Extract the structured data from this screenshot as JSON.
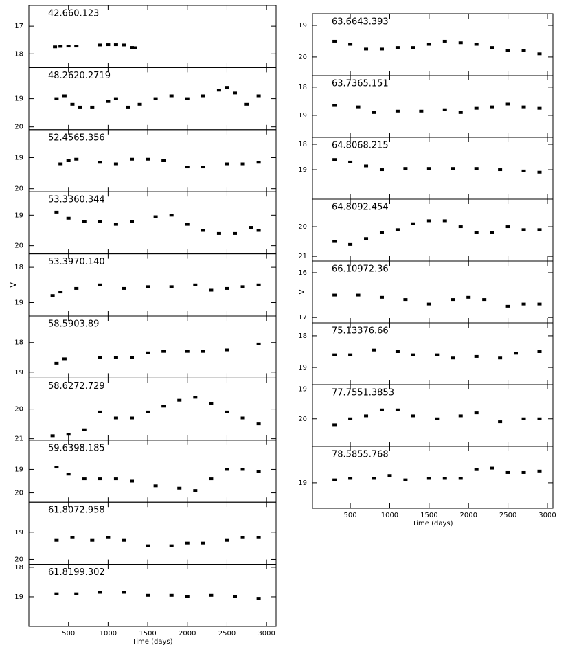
{
  "chart_data": [
    {
      "type": "scatter",
      "title": "42.660.123",
      "ylim": [
        18.5,
        16.25
      ],
      "yticks": [
        17,
        18
      ],
      "x": [
        330,
        400,
        500,
        600,
        900,
        1000,
        1100,
        1200,
        1300,
        1340
      ],
      "values": [
        17.75,
        17.73,
        17.72,
        17.72,
        17.68,
        17.67,
        17.67,
        17.68,
        17.77,
        17.78
      ]
    },
    {
      "type": "scatter",
      "title": "48.2620.2719",
      "ylim": [
        20.1,
        17.9
      ],
      "yticks": [
        19,
        20
      ],
      "x": [
        350,
        450,
        550,
        650,
        800,
        1000,
        1100,
        1250,
        1400,
        1600,
        1800,
        2000,
        2200,
        2400,
        2500,
        2600,
        2750,
        2900
      ],
      "values": [
        19.0,
        18.9,
        19.2,
        19.3,
        19.3,
        19.1,
        19.0,
        19.3,
        19.2,
        19.0,
        18.9,
        19.0,
        18.9,
        18.7,
        18.6,
        18.8,
        19.2,
        18.9
      ]
    },
    {
      "type": "scatter",
      "title": "52.4565.356",
      "ylim": [
        20.1,
        18.1
      ],
      "yticks": [
        19,
        20
      ],
      "x": [
        400,
        500,
        600,
        900,
        1100,
        1300,
        1500,
        1700,
        2000,
        2200,
        2500,
        2700,
        2900
      ],
      "values": [
        19.2,
        19.1,
        19.05,
        19.15,
        19.2,
        19.05,
        19.05,
        19.1,
        19.3,
        19.3,
        19.2,
        19.2,
        19.15
      ]
    },
    {
      "type": "scatter",
      "title": "53.3360.344",
      "ylim": [
        20.27,
        18.23
      ],
      "yticks": [
        19,
        20
      ],
      "x": [
        350,
        500,
        700,
        900,
        1100,
        1300,
        1600,
        1800,
        2000,
        2200,
        2400,
        2600,
        2800,
        2900
      ],
      "values": [
        18.9,
        19.1,
        19.2,
        19.2,
        19.3,
        19.2,
        19.05,
        19.0,
        19.3,
        19.5,
        19.6,
        19.6,
        19.4,
        19.5
      ]
    },
    {
      "type": "scatter",
      "title": "53.3970.140",
      "ylabel": "V",
      "ylim": [
        19.38,
        17.62
      ],
      "yticks": [
        18,
        19
      ],
      "x": [
        300,
        400,
        600,
        900,
        1200,
        1500,
        1800,
        2100,
        2300,
        2500,
        2700,
        2900
      ],
      "values": [
        18.8,
        18.7,
        18.6,
        18.5,
        18.6,
        18.55,
        18.55,
        18.5,
        18.65,
        18.6,
        18.55,
        18.5
      ]
    },
    {
      "type": "scatter",
      "title": "58.5903.89",
      "ylim": [
        19.2,
        17.1
      ],
      "yticks": [
        18,
        19
      ],
      "x": [
        350,
        450,
        900,
        1100,
        1300,
        1500,
        1700,
        2000,
        2200,
        2500,
        2900
      ],
      "values": [
        18.7,
        18.55,
        18.5,
        18.5,
        18.5,
        18.35,
        18.3,
        18.3,
        18.3,
        18.25,
        18.05
      ]
    },
    {
      "type": "scatter",
      "title": "58.6272.729",
      "ylim": [
        21.05,
        18.95
      ],
      "yticks": [
        20,
        21
      ],
      "x": [
        300,
        500,
        700,
        900,
        1100,
        1300,
        1500,
        1700,
        1900,
        2100,
        2300,
        2500,
        2700,
        2900
      ],
      "values": [
        20.9,
        20.85,
        20.7,
        20.1,
        20.3,
        20.3,
        20.1,
        19.9,
        19.7,
        19.6,
        19.8,
        20.1,
        20.3,
        20.5
      ]
    },
    {
      "type": "scatter",
      "title": "59.6398.185",
      "ylim": [
        20.4,
        17.75
      ],
      "yticks": [
        19,
        20
      ],
      "x": [
        350,
        500,
        700,
        900,
        1100,
        1300,
        1600,
        1900,
        2100,
        2300,
        2500,
        2700,
        2900
      ],
      "values": [
        18.9,
        19.2,
        19.4,
        19.4,
        19.4,
        19.5,
        19.7,
        19.8,
        19.9,
        19.4,
        19.0,
        19.0,
        19.1
      ]
    },
    {
      "type": "scatter",
      "title": "61.8072.958",
      "ylim": [
        20.18,
        17.9
      ],
      "yticks": [
        19,
        20
      ],
      "x": [
        350,
        550,
        800,
        1000,
        1200,
        1500,
        1800,
        2000,
        2200,
        2500,
        2700,
        2900
      ],
      "values": [
        19.3,
        19.2,
        19.3,
        19.2,
        19.3,
        19.5,
        19.5,
        19.4,
        19.4,
        19.3,
        19.2,
        19.2
      ]
    },
    {
      "type": "scatter",
      "title": "61.8199.302",
      "xlabel": "Time (days)",
      "xlim": [
        0,
        3120
      ],
      "xticks": [
        500,
        1000,
        1500,
        2000,
        2500,
        3000
      ],
      "ylim": [
        20.0,
        17.9
      ],
      "yticks": [
        18,
        19
      ],
      "x": [
        350,
        600,
        900,
        1200,
        1500,
        1800,
        2000,
        2300,
        2600,
        2900
      ],
      "values": [
        18.9,
        18.9,
        18.85,
        18.85,
        18.95,
        18.95,
        19.0,
        18.95,
        19.0,
        19.05
      ]
    },
    {
      "type": "scatter",
      "title": "63.6643.393",
      "ylim": [
        20.59,
        18.63
      ],
      "yticks": [
        19,
        20
      ],
      "x": [
        300,
        500,
        700,
        900,
        1100,
        1300,
        1500,
        1700,
        1900,
        2100,
        2300,
        2500,
        2700,
        2900
      ],
      "values": [
        19.5,
        19.6,
        19.75,
        19.75,
        19.7,
        19.7,
        19.6,
        19.5,
        19.55,
        19.6,
        19.7,
        19.8,
        19.8,
        19.9
      ]
    },
    {
      "type": "scatter",
      "title": "63.7365.151",
      "ylim": [
        19.78,
        17.59
      ],
      "yticks": [
        18,
        19
      ],
      "x": [
        300,
        600,
        800,
        1100,
        1400,
        1700,
        1900,
        2100,
        2300,
        2500,
        2700,
        2900
      ],
      "values": [
        18.65,
        18.7,
        18.9,
        18.85,
        18.85,
        18.8,
        18.9,
        18.75,
        18.7,
        18.6,
        18.7,
        18.75
      ]
    },
    {
      "type": "scatter",
      "title": "64.8068.215",
      "ylim": [
        20.16,
        17.73
      ],
      "yticks": [
        18,
        19
      ],
      "x": [
        300,
        500,
        700,
        900,
        1200,
        1500,
        1800,
        2100,
        2400,
        2700,
        2900
      ],
      "values": [
        18.6,
        18.7,
        18.85,
        19.0,
        18.95,
        18.95,
        18.95,
        18.95,
        19.0,
        19.05,
        19.1
      ]
    },
    {
      "type": "scatter",
      "title": "64.8092.454",
      "ylim": [
        21.16,
        19.07
      ],
      "yticks": [
        20,
        21
      ],
      "x": [
        300,
        500,
        700,
        900,
        1100,
        1300,
        1500,
        1700,
        1900,
        2100,
        2300,
        2500,
        2700,
        2900
      ],
      "values": [
        20.5,
        20.6,
        20.4,
        20.2,
        20.1,
        19.9,
        19.8,
        19.8,
        20.0,
        20.2,
        20.2,
        20.0,
        20.1,
        20.1
      ]
    },
    {
      "type": "scatter",
      "title": "66.10972.36",
      "ylabel": "V",
      "ylim": [
        17.12,
        15.74
      ],
      "yticks": [
        16,
        17
      ],
      "x": [
        300,
        600,
        900,
        1200,
        1500,
        1800,
        2000,
        2200,
        2500,
        2700,
        2900
      ],
      "values": [
        16.5,
        16.5,
        16.55,
        16.6,
        16.7,
        16.6,
        16.55,
        16.6,
        16.75,
        16.7,
        16.7
      ]
    },
    {
      "type": "scatter",
      "title": "75.13376.66",
      "ylim": [
        19.54,
        17.59
      ],
      "yticks": [
        18,
        19
      ],
      "x": [
        300,
        500,
        800,
        1100,
        1300,
        1600,
        1800,
        2100,
        2400,
        2600,
        2900
      ],
      "values": [
        18.6,
        18.6,
        18.45,
        18.5,
        18.6,
        18.6,
        18.7,
        18.65,
        18.7,
        18.55,
        18.5
      ]
    },
    {
      "type": "scatter",
      "title": "77.7551.3853",
      "ylim": [
        20.93,
        18.85
      ],
      "yticks": [
        19,
        20
      ],
      "x": [
        300,
        500,
        700,
        900,
        1100,
        1300,
        1600,
        1900,
        2100,
        2400,
        2700,
        2900
      ],
      "values": [
        20.2,
        20.0,
        19.9,
        19.7,
        19.7,
        19.9,
        20.0,
        19.9,
        19.8,
        20.1,
        20.0,
        20.0
      ]
    },
    {
      "type": "scatter",
      "title": "78.5855.768",
      "xlabel": "Time (days)",
      "xlim": [
        20,
        3070
      ],
      "xticks": [
        500,
        1000,
        1500,
        2000,
        2500,
        3000
      ],
      "ylim": [
        19.87,
        17.76
      ],
      "yticks": [
        19
      ],
      "x": [
        300,
        500,
        800,
        1000,
        1200,
        1500,
        1700,
        1900,
        2100,
        2300,
        2500,
        2700,
        2900
      ],
      "values": [
        18.9,
        18.85,
        18.85,
        18.75,
        18.9,
        18.85,
        18.85,
        18.85,
        18.55,
        18.5,
        18.65,
        18.65,
        18.6
      ]
    }
  ]
}
